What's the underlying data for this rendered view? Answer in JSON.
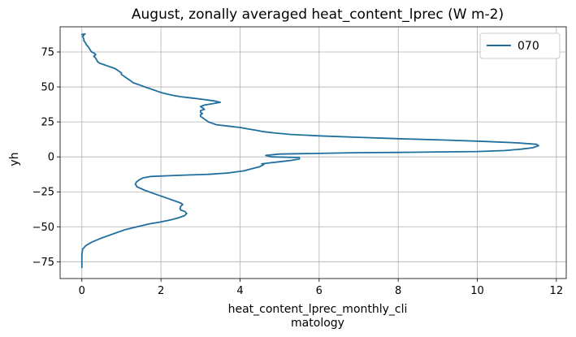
{
  "chart_data": {
    "type": "line",
    "title": "August, zonally averaged heat_content_lprec (W m-2)",
    "xlabel_lines": [
      "heat_content_lprec_monthly_cli",
      "matology"
    ],
    "ylabel": "yh",
    "xlim": [
      -0.55,
      12.25
    ],
    "ylim": [
      -87,
      93
    ],
    "xticks": [
      0,
      2,
      4,
      6,
      8,
      10,
      12
    ],
    "yticks": [
      -75,
      -50,
      -25,
      0,
      25,
      50,
      75
    ],
    "xtick_labels": [
      "0",
      "2",
      "4",
      "6",
      "8",
      "10",
      "12"
    ],
    "ytick_labels": [
      "−75",
      "−50",
      "−25",
      "0",
      "25",
      "50",
      "75"
    ],
    "grid": true,
    "legend_position": "top-right",
    "series": [
      {
        "name": "070",
        "color": "#1f6e9e",
        "points": [
          [
            0.0,
            -79.5
          ],
          [
            0.0,
            -75
          ],
          [
            0.0,
            -70
          ],
          [
            0.02,
            -66
          ],
          [
            0.1,
            -63.5
          ],
          [
            0.25,
            -61
          ],
          [
            0.5,
            -58
          ],
          [
            0.8,
            -55
          ],
          [
            1.1,
            -52
          ],
          [
            1.4,
            -50
          ],
          [
            1.7,
            -48
          ],
          [
            2.0,
            -46.5
          ],
          [
            2.25,
            -45
          ],
          [
            2.45,
            -43.5
          ],
          [
            2.6,
            -42
          ],
          [
            2.65,
            -40.5
          ],
          [
            2.6,
            -39
          ],
          [
            2.5,
            -38
          ],
          [
            2.48,
            -37
          ],
          [
            2.5,
            -35.5
          ],
          [
            2.55,
            -34
          ],
          [
            2.5,
            -33
          ],
          [
            2.45,
            -32.5
          ],
          [
            2.2,
            -30
          ],
          [
            1.9,
            -27
          ],
          [
            1.6,
            -24
          ],
          [
            1.4,
            -21.5
          ],
          [
            1.35,
            -19.5
          ],
          [
            1.38,
            -18
          ],
          [
            1.45,
            -16.5
          ],
          [
            1.55,
            -15
          ],
          [
            1.75,
            -14
          ],
          [
            2.2,
            -13.5
          ],
          [
            2.6,
            -13
          ],
          [
            3.2,
            -12.5
          ],
          [
            3.7,
            -11.5
          ],
          [
            4.1,
            -10
          ],
          [
            4.3,
            -8.5
          ],
          [
            4.5,
            -7
          ],
          [
            4.6,
            -5.5
          ],
          [
            4.55,
            -5
          ],
          [
            4.7,
            -4.5
          ],
          [
            5.0,
            -3.5
          ],
          [
            5.3,
            -2.5
          ],
          [
            5.5,
            -1.5
          ],
          [
            5.5,
            -0.5
          ],
          [
            4.8,
            0
          ],
          [
            4.65,
            1
          ],
          [
            5.0,
            2
          ],
          [
            6.0,
            2.5
          ],
          [
            7.0,
            3
          ],
          [
            8.0,
            3.2
          ],
          [
            9.0,
            3.5
          ],
          [
            10.0,
            3.8
          ],
          [
            10.7,
            4.5
          ],
          [
            11.1,
            5.5
          ],
          [
            11.4,
            6.5
          ],
          [
            11.55,
            8
          ],
          [
            11.5,
            9
          ],
          [
            11.0,
            10
          ],
          [
            10.2,
            11
          ],
          [
            9.2,
            12
          ],
          [
            8.0,
            13
          ],
          [
            7.0,
            14
          ],
          [
            6.0,
            15
          ],
          [
            5.3,
            16
          ],
          [
            4.9,
            17
          ],
          [
            4.6,
            18
          ],
          [
            4.4,
            19
          ],
          [
            4.2,
            20
          ],
          [
            4.0,
            21
          ],
          [
            3.7,
            22
          ],
          [
            3.4,
            23
          ],
          [
            3.3,
            24
          ],
          [
            3.2,
            25
          ],
          [
            3.15,
            26
          ],
          [
            3.1,
            27
          ],
          [
            3.05,
            28
          ],
          [
            3.0,
            29
          ],
          [
            3.0,
            30
          ],
          [
            3.05,
            31
          ],
          [
            3.0,
            32
          ],
          [
            3.0,
            33
          ],
          [
            3.1,
            34
          ],
          [
            3.05,
            35
          ],
          [
            3.0,
            36
          ],
          [
            3.1,
            37
          ],
          [
            3.3,
            38
          ],
          [
            3.5,
            39
          ],
          [
            3.35,
            40
          ],
          [
            3.1,
            41
          ],
          [
            2.8,
            42
          ],
          [
            2.5,
            43
          ],
          [
            2.3,
            44
          ],
          [
            2.15,
            45
          ],
          [
            2.0,
            46
          ],
          [
            1.9,
            47
          ],
          [
            1.8,
            48
          ],
          [
            1.7,
            49
          ],
          [
            1.6,
            50
          ],
          [
            1.5,
            51
          ],
          [
            1.4,
            52
          ],
          [
            1.3,
            53
          ],
          [
            1.25,
            54
          ],
          [
            1.2,
            55
          ],
          [
            1.15,
            56
          ],
          [
            1.1,
            57
          ],
          [
            1.05,
            58
          ],
          [
            1.0,
            59
          ],
          [
            1.0,
            60
          ],
          [
            0.95,
            61
          ],
          [
            0.9,
            62
          ],
          [
            0.85,
            63
          ],
          [
            0.75,
            64
          ],
          [
            0.7,
            64.5
          ],
          [
            0.65,
            65
          ],
          [
            0.55,
            66
          ],
          [
            0.45,
            67
          ],
          [
            0.4,
            68
          ],
          [
            0.38,
            69
          ],
          [
            0.36,
            70
          ],
          [
            0.34,
            71
          ],
          [
            0.3,
            72
          ],
          [
            0.35,
            73
          ],
          [
            0.32,
            74
          ],
          [
            0.25,
            75
          ],
          [
            0.22,
            76
          ],
          [
            0.2,
            77
          ],
          [
            0.18,
            78
          ],
          [
            0.15,
            79
          ],
          [
            0.12,
            80
          ],
          [
            0.1,
            81
          ],
          [
            0.08,
            82
          ],
          [
            0.05,
            83
          ],
          [
            0.05,
            84
          ],
          [
            0.04,
            85
          ],
          [
            0.02,
            86
          ],
          [
            0.05,
            87
          ],
          [
            0.0,
            87.5
          ],
          [
            0.1,
            88
          ]
        ]
      }
    ]
  }
}
